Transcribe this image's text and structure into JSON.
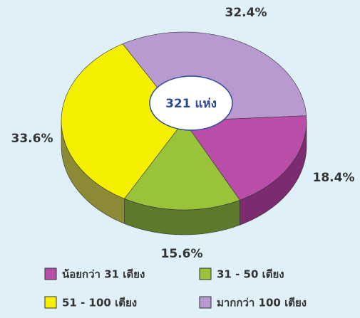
{
  "chart_data": {
    "type": "pie",
    "center_label": "321 แห่ง",
    "categories": [
      "น้อยกว่า 31 เตียง",
      "31 - 50 เตียง",
      "51 -  100 เตียง",
      "มากกว่า 100 เตียง"
    ],
    "values": [
      18.4,
      15.6,
      33.6,
      32.4
    ],
    "value_labels": [
      "18.4%",
      "15.6%",
      "33.6%",
      "32.4%"
    ],
    "colors": [
      "#b94ea8",
      "#99c43a",
      "#f5f000",
      "#b99ad0"
    ],
    "side_colors": [
      "#7d2b70",
      "#5b7a2c",
      "#8c8a34",
      "#7d6495"
    ]
  }
}
